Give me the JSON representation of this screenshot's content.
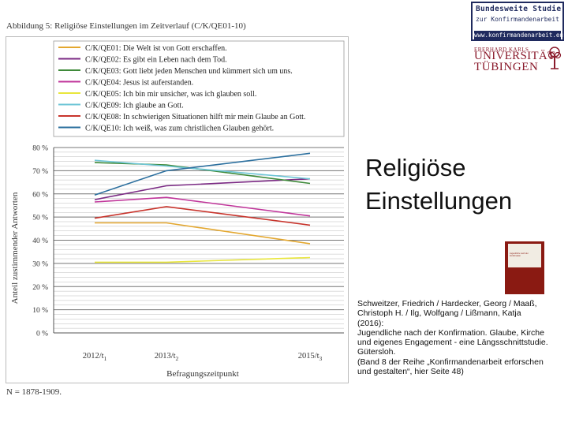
{
  "caption": "Abbildung 5: Religiöse Einstellungen im Zeitverlauf (C/K/QE01-10)",
  "n_note": "N = 1878-1909.",
  "slide_title_lines": [
    "Religiöse",
    "Einstellungen"
  ],
  "logo": {
    "top": "Bundesweite Studie",
    "sub": "zur Konfirmandenarbeit",
    "url": "www.konfirmandenarbeit.eu"
  },
  "university": {
    "small": "EBERHARD KARLS",
    "name": "UNIVERSITÄT",
    "town": "TÜBINGEN"
  },
  "book": {
    "title": "Jugendliche nach der Konfirmation"
  },
  "reference_lines": [
    "Schweitzer, Friedrich / Hardecker, Georg / Maaß,",
    "Christoph H. / Ilg, Wolfgang / Lißmann, Katja",
    "(2016):",
    "Jugendliche nach der Konfirmation. Glaube, Kirche",
    "und eigenes Engagement - eine Längsschnittstudie.",
    "Gütersloh.",
    "(Band 8 der Reihe „Konfirmandenarbeit erforschen",
    "und gestalten“, hier Seite 48)"
  ],
  "chart_data": {
    "type": "line",
    "title": "",
    "xlabel": "Befragungszeitpunkt",
    "ylabel": "Anteil zustimmender Antworten",
    "x": [
      {
        "label": "2012/t",
        "sub": "1"
      },
      {
        "label": "2013/t",
        "sub": "2"
      },
      {
        "label": "2015/t",
        "sub": "3"
      }
    ],
    "x_positions": [
      0,
      1,
      3
    ],
    "ylim": [
      0,
      80
    ],
    "yticks": [
      "0 %",
      "10 %",
      "20 %",
      "30 %",
      "40 %",
      "50 %",
      "60 %",
      "70 %",
      "80 %"
    ],
    "grid": true,
    "legend_position": "top",
    "series": [
      {
        "name": "C/K/QE01: Die Welt ist von Gott erschaffen.",
        "color": "#e3a72f",
        "values": [
          47.5,
          47.5,
          38.5
        ]
      },
      {
        "name": "C/K/QE02: Es gibt ein Leben nach dem Tod.",
        "color": "#7b2a84",
        "values": [
          57.5,
          63.5,
          66.5
        ]
      },
      {
        "name": "C/K/QE03: Gott liebt jeden Menschen und kümmert sich um uns.",
        "color": "#3f8a3a",
        "values": [
          73.5,
          72.5,
          64.5
        ]
      },
      {
        "name": "C/K/QE04: Jesus ist auferstanden.",
        "color": "#c1379b",
        "values": [
          56.5,
          58.5,
          50.5
        ]
      },
      {
        "name": "C/K/QE05: Ich bin mir unsicher, was ich glauben soll.",
        "color": "#e9e63c",
        "values": [
          30.5,
          30.5,
          32.5
        ]
      },
      {
        "name": "C/K/QE09: Ich glaube an Gott.",
        "color": "#6dc5d6",
        "values": [
          74.5,
          72.0,
          66.5
        ]
      },
      {
        "name": "C/K/QE08: In schwierigen Situationen hilft mir mein Glaube an Gott.",
        "color": "#c8342c",
        "values": [
          49.5,
          54.5,
          46.5
        ]
      },
      {
        "name": "C/K/QE10: Ich weiß, was zum christlichen Glauben gehört.",
        "color": "#2b6f9e",
        "values": [
          59.5,
          70.0,
          77.5
        ]
      }
    ]
  }
}
